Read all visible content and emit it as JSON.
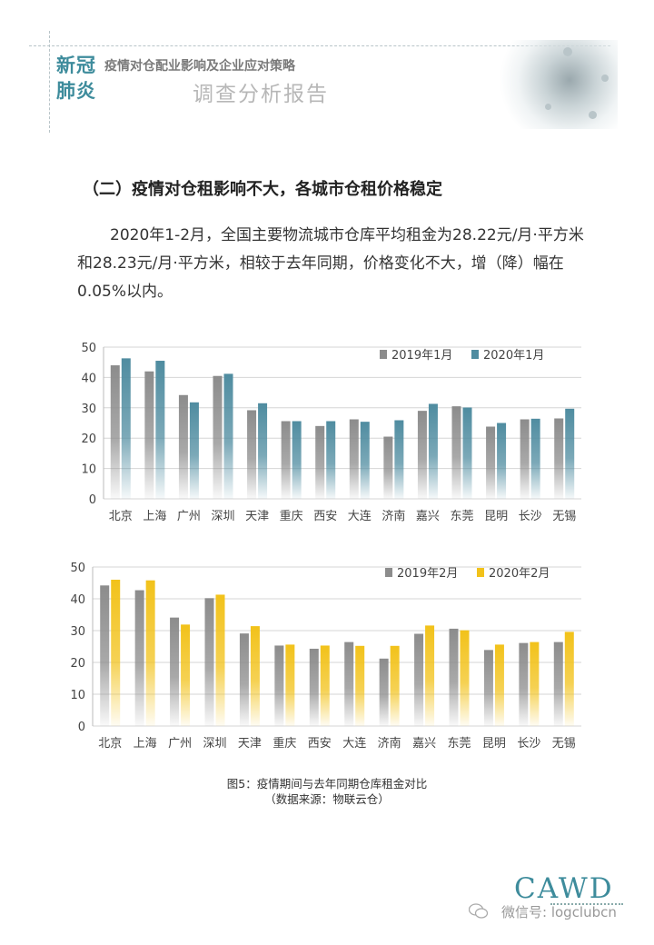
{
  "header": {
    "word_line1": "新冠",
    "word_line2": "肺炎",
    "subtitle": "疫情对仓配业影响及企业应对策略",
    "report_title": "调查分析报告"
  },
  "section": {
    "title": "（二）疫情对仓租影响不大，各城市仓租价格稳定",
    "paragraph": "2020年1-2月，全国主要物流城市仓库平均租金为28.22元/月·平方米和28.23元/月·平方米，相较于去年同期，价格变化不大，增（降）幅在0.05%以内。"
  },
  "colors": {
    "gray_series": "#8c8c8c",
    "teal_series": "#4f8ca0",
    "gold_series": "#f2c21a",
    "accent": "#3e8c9c"
  },
  "chart_data": [
    {
      "type": "bar",
      "categories": [
        "北京",
        "上海",
        "广州",
        "深圳",
        "天津",
        "重庆",
        "西安",
        "大连",
        "济南",
        "嘉兴",
        "东莞",
        "昆明",
        "长沙",
        "无锡"
      ],
      "series": [
        {
          "name": "2019年1月",
          "values": [
            44,
            42,
            34.2,
            40.5,
            29.2,
            25.6,
            24,
            26.2,
            20.5,
            29,
            30.5,
            23.8,
            26.2,
            26.5
          ],
          "color": "#8c8c8c"
        },
        {
          "name": "2020年1月",
          "values": [
            46.3,
            45.5,
            31.8,
            41.2,
            31.5,
            25.6,
            25.6,
            25.4,
            25.9,
            31.3,
            30.1,
            25,
            26.4,
            29.7
          ],
          "color": "#4f8ca0"
        }
      ],
      "ylim": [
        0,
        50
      ],
      "yticks": [
        "0",
        "10",
        "20",
        "30",
        "40",
        "50"
      ],
      "grid": true,
      "legend": "top-right"
    },
    {
      "type": "bar",
      "categories": [
        "北京",
        "上海",
        "广州",
        "深圳",
        "天津",
        "重庆",
        "西安",
        "大连",
        "济南",
        "嘉兴",
        "东莞",
        "昆明",
        "长沙",
        "无锡"
      ],
      "series": [
        {
          "name": "2019年2月",
          "values": [
            44.2,
            42.7,
            34.1,
            40.2,
            29.1,
            25.3,
            24.3,
            26.4,
            21.2,
            29,
            30.6,
            23.9,
            26.1,
            26.4
          ],
          "color": "#8c8c8c"
        },
        {
          "name": "2020年2月",
          "values": [
            46,
            45.8,
            31.9,
            41.3,
            31.4,
            25.6,
            25.3,
            25.2,
            25.2,
            31.6,
            30.1,
            25.6,
            26.4,
            29.6
          ],
          "color": "#f2c21a"
        }
      ],
      "ylim": [
        0,
        50
      ],
      "yticks": [
        "0",
        "10",
        "20",
        "30",
        "40",
        "50"
      ],
      "grid": true,
      "legend": "top-right"
    }
  ],
  "caption": {
    "line1": "图5：疫情期间与去年同期仓库租金对比",
    "line2": "（数据来源：物联云仓）"
  },
  "branding": {
    "logo": "CAWD",
    "watermark": "微信号: logclubcn"
  }
}
